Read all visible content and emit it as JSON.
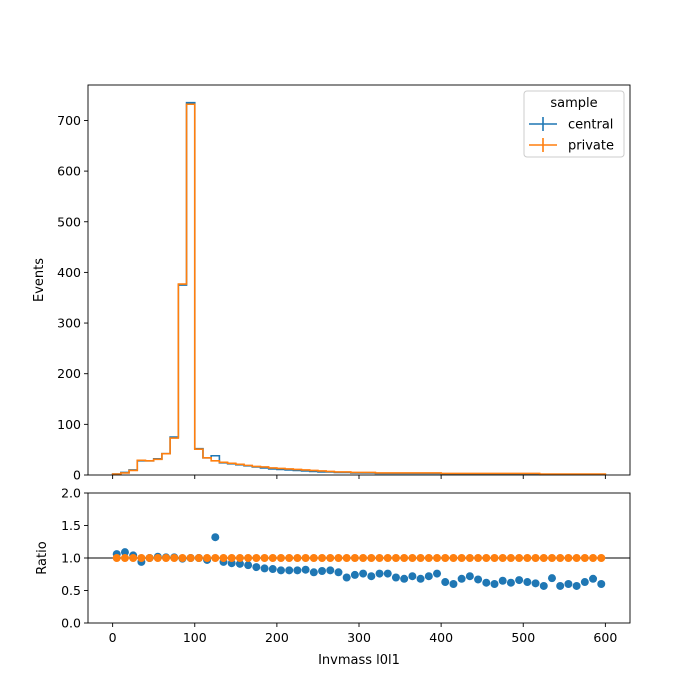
{
  "chart_data": [
    {
      "type": "histogram",
      "ylabel": "Events",
      "xlim": [
        -30,
        630
      ],
      "ylim": [
        0,
        770
      ],
      "x_ticks": [
        "0",
        "100",
        "200",
        "300",
        "400",
        "500",
        "600"
      ],
      "x_tick_values": [
        0,
        100,
        200,
        300,
        400,
        500,
        600
      ],
      "y_ticks": [
        "0",
        "100",
        "200",
        "300",
        "400",
        "500",
        "600",
        "700"
      ],
      "y_tick_values": [
        0,
        100,
        200,
        300,
        400,
        500,
        600,
        700
      ],
      "bin_edges": [
        0,
        10,
        20,
        30,
        40,
        50,
        60,
        70,
        80,
        90,
        100,
        110,
        120,
        130,
        140,
        150,
        160,
        170,
        180,
        190,
        200,
        210,
        220,
        230,
        240,
        250,
        260,
        270,
        280,
        290,
        300,
        310,
        320,
        330,
        340,
        350,
        360,
        370,
        380,
        390,
        400,
        410,
        420,
        430,
        440,
        450,
        460,
        470,
        480,
        490,
        500,
        510,
        520,
        530,
        540,
        550,
        560,
        570,
        580,
        590,
        600
      ],
      "legend": {
        "title": "sample",
        "position": "top-right"
      },
      "series": [
        {
          "name": "central",
          "color": "#1f77b4",
          "values": [
            2,
            5,
            10,
            28,
            28,
            32,
            42,
            75,
            375,
            735,
            52,
            34,
            38,
            24,
            22,
            20,
            18,
            16,
            14,
            12,
            11,
            10,
            9,
            8,
            7,
            6,
            6,
            5,
            5,
            4,
            4,
            4,
            3,
            3,
            3,
            3,
            3,
            3,
            3,
            3,
            2,
            2,
            2,
            2,
            2,
            2,
            2,
            2,
            2,
            2,
            2,
            2,
            1,
            1,
            1,
            1,
            1,
            1,
            1,
            1
          ]
        },
        {
          "name": "private",
          "color": "#ff7f0e",
          "values": [
            2,
            4,
            9,
            29,
            28,
            31,
            42,
            73,
            377,
            732,
            51,
            34,
            28,
            25,
            23,
            21,
            19,
            17,
            16,
            14,
            13,
            12,
            11,
            10,
            9,
            8,
            7,
            6,
            6,
            5,
            5,
            5,
            4,
            4,
            4,
            4,
            4,
            4,
            4,
            4,
            3,
            3,
            3,
            3,
            3,
            3,
            3,
            3,
            3,
            3,
            3,
            3,
            2,
            2,
            2,
            2,
            2,
            2,
            2,
            2
          ]
        }
      ]
    },
    {
      "type": "scatter",
      "xlabel": "Invmass l0l1",
      "ylabel": "Ratio",
      "xlim": [
        -30,
        630
      ],
      "ylim": [
        0,
        2
      ],
      "x_ticks": [
        "0",
        "100",
        "200",
        "300",
        "400",
        "500",
        "600"
      ],
      "x_tick_values": [
        0,
        100,
        200,
        300,
        400,
        500,
        600
      ],
      "y_ticks": [
        "0.0",
        "0.5",
        "1.0",
        "1.5",
        "2.0"
      ],
      "y_tick_values": [
        0,
        0.5,
        1,
        1.5,
        2
      ],
      "reference_line": 1.0,
      "x": [
        5,
        15,
        25,
        35,
        45,
        55,
        65,
        75,
        85,
        95,
        105,
        115,
        125,
        135,
        145,
        155,
        165,
        175,
        185,
        195,
        205,
        215,
        225,
        235,
        245,
        255,
        265,
        275,
        285,
        295,
        305,
        315,
        325,
        335,
        345,
        355,
        365,
        375,
        385,
        395,
        405,
        415,
        425,
        435,
        445,
        455,
        465,
        475,
        485,
        495,
        505,
        515,
        525,
        535,
        545,
        555,
        565,
        575,
        585,
        595
      ],
      "series": [
        {
          "name": "central",
          "color": "#1f77b4",
          "values": [
            1.06,
            1.09,
            1.04,
            0.94,
            1.0,
            1.02,
            1.01,
            1.01,
            0.99,
            1.0,
            1.0,
            0.97,
            1.32,
            0.94,
            0.92,
            0.91,
            0.89,
            0.86,
            0.84,
            0.83,
            0.81,
            0.81,
            0.81,
            0.82,
            0.78,
            0.8,
            0.81,
            0.78,
            0.7,
            0.74,
            0.76,
            0.72,
            0.76,
            0.76,
            0.7,
            0.68,
            0.72,
            0.68,
            0.72,
            0.76,
            0.63,
            0.6,
            0.68,
            0.72,
            0.67,
            0.62,
            0.6,
            0.65,
            0.62,
            0.66,
            0.63,
            0.61,
            0.57,
            0.69,
            0.57,
            0.6,
            0.57,
            0.63,
            0.68,
            0.6
          ]
        },
        {
          "name": "private",
          "color": "#ff7f0e",
          "values": [
            1,
            1,
            1,
            1,
            1,
            1,
            1,
            1,
            1,
            1,
            1,
            1,
            1,
            1,
            1,
            1,
            1,
            1,
            1,
            1,
            1,
            1,
            1,
            1,
            1,
            1,
            1,
            1,
            1,
            1,
            1,
            1,
            1,
            1,
            1,
            1,
            1,
            1,
            1,
            1,
            1,
            1,
            1,
            1,
            1,
            1,
            1,
            1,
            1,
            1,
            1,
            1,
            1,
            1,
            1,
            1,
            1,
            1,
            1,
            1
          ]
        }
      ]
    }
  ]
}
